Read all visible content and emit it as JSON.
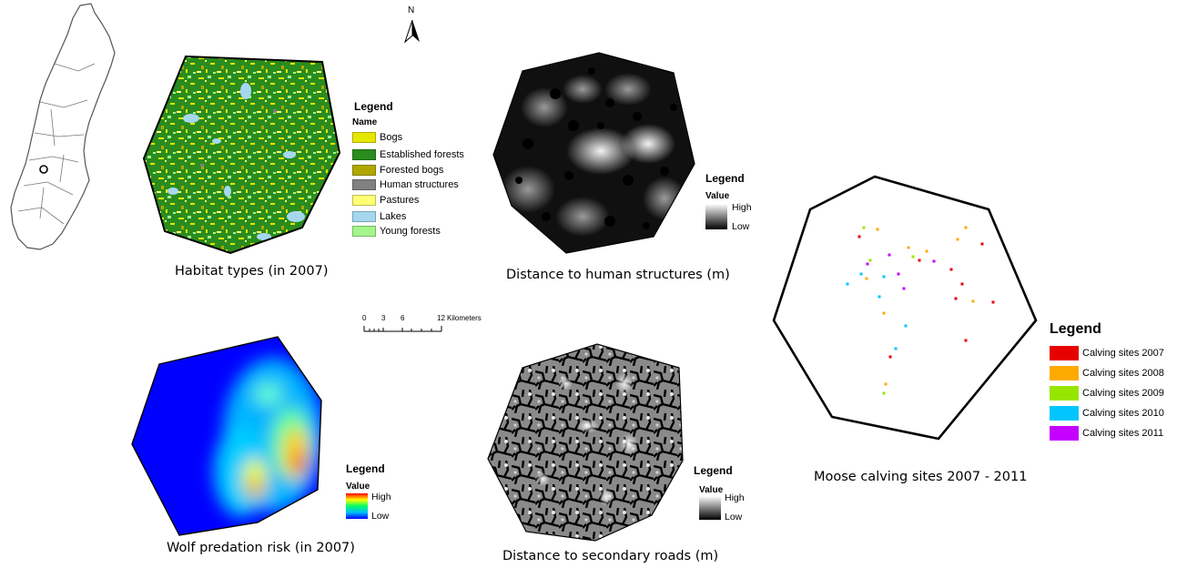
{
  "north_arrow": {
    "label": "N"
  },
  "habitat": {
    "caption": "Habitat types (in 2007)",
    "legend_title": "Legend",
    "legend_subtitle": "Name",
    "items": [
      {
        "label": "Bogs",
        "color": "#e6e600"
      },
      {
        "label": "Established forests",
        "color": "#2a8c1e"
      },
      {
        "label": "Forested bogs",
        "color": "#b0a800"
      },
      {
        "label": "Human structures",
        "color": "#808080"
      },
      {
        "label": "Pastures",
        "color": "#ffff73"
      },
      {
        "label": "Lakes",
        "color": "#a5d8ef"
      },
      {
        "label": "Young forests",
        "color": "#a3f58c"
      }
    ]
  },
  "human_distance": {
    "caption": "Distance to human structures (m)",
    "legend_title": "Legend",
    "legend_subtitle": "Value",
    "high_label": "High",
    "low_label": "Low"
  },
  "wolf": {
    "caption": "Wolf predation risk (in 2007)",
    "legend_title": "Legend",
    "legend_subtitle": "Value",
    "high_label": "High",
    "low_label": "Low"
  },
  "roads": {
    "caption": "Distance to secondary roads (m)",
    "legend_title": "Legend",
    "legend_subtitle": "Value",
    "high_label": "High",
    "low_label": "Low"
  },
  "scale_bar": {
    "ticks": [
      "0",
      "3",
      "6",
      "12"
    ],
    "unit": "Kilometers"
  },
  "calving": {
    "caption": "Moose calving sites 2007 - 2011",
    "legend_title": "Legend",
    "items": [
      {
        "label": "Calving sites 2007",
        "color": "#e60000"
      },
      {
        "label": "Calving sites 2008",
        "color": "#ffaa00"
      },
      {
        "label": "Calving sites 2009",
        "color": "#98e600"
      },
      {
        "label": "Calving sites 2010",
        "color": "#00c5ff"
      },
      {
        "label": "Calving sites 2011",
        "color": "#c500ff"
      }
    ]
  }
}
